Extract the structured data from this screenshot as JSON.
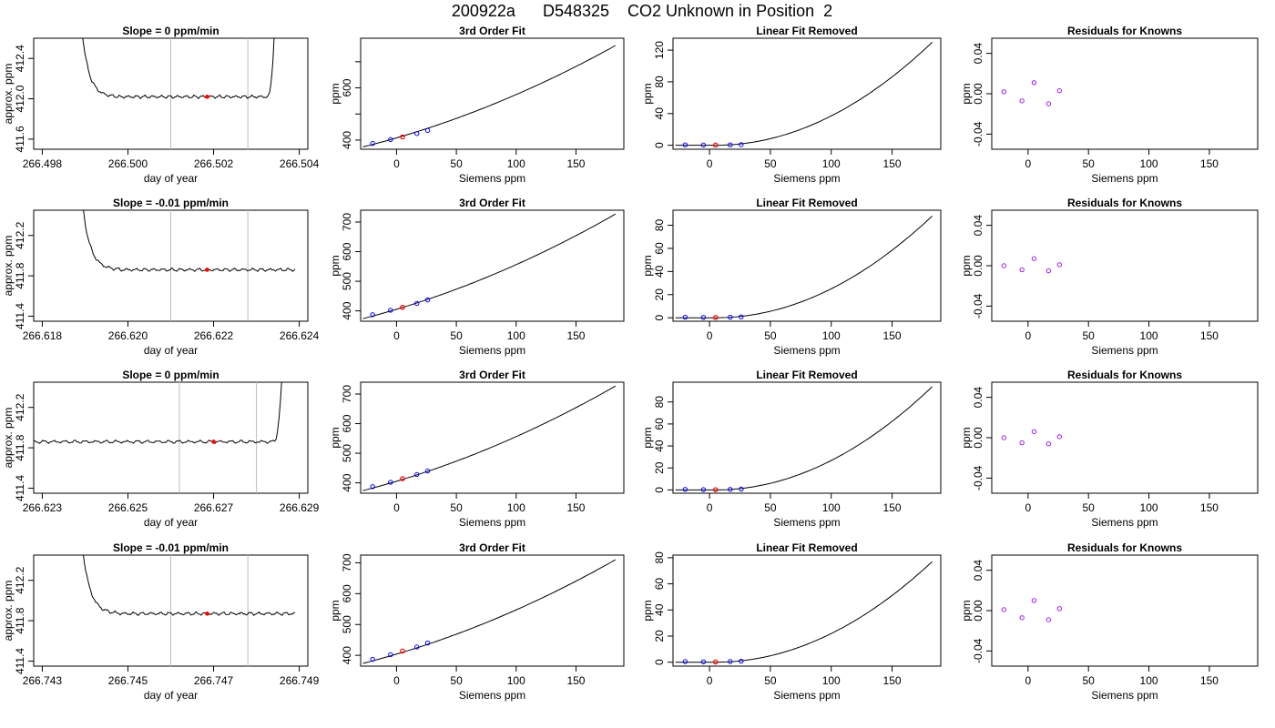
{
  "figure": {
    "main_title": "200922a      D548325    CO2 Unknown in Position  2"
  },
  "colors": {
    "line": "#000000",
    "vline": "#bebebe",
    "point_red": "#ff0000",
    "point_blue": "#0000ff",
    "point_purple": "#a020f0"
  },
  "chart_data": [
    {
      "row": 0,
      "col": 0,
      "type": "line",
      "title": "Slope =  0  ppm/min",
      "xlabel": "day of year",
      "ylabel": "approx. ppm",
      "xlim": [
        266.4978,
        266.5042
      ],
      "ylim": [
        411.5,
        412.6
      ],
      "xticks": [
        266.498,
        266.5,
        266.502,
        266.504
      ],
      "xtick_labels": [
        "266.498",
        "266.500",
        "266.502",
        "266.504"
      ],
      "yticks": [
        411.6,
        412.0,
        412.4
      ],
      "ytick_labels": [
        "411.6",
        "412.0",
        "412.4"
      ],
      "trace": {
        "x_start": 266.4988,
        "x_end": 266.5035,
        "plateau": 412.02,
        "rise_start": true,
        "rise_end": true
      },
      "vlines": [
        266.501,
        266.5028
      ],
      "mark": {
        "x": 266.50185,
        "y": 412.02
      }
    },
    {
      "row": 0,
      "col": 1,
      "type": "line",
      "title": "3rd Order Fit",
      "xlabel": "Siemens ppm",
      "ylabel": "ppm",
      "xlim": [
        -30,
        190
      ],
      "ylim": [
        365,
        790
      ],
      "xticks": [
        0,
        50,
        100,
        150
      ],
      "xtick_labels": [
        "0",
        "50",
        "100",
        "150"
      ],
      "yticks": [
        400,
        600
      ],
      "ytick_labels": [
        "400",
        "600"
      ],
      "yminor": [
        500,
        700
      ],
      "curve": {
        "x0": -28,
        "x1": 183,
        "y0": 374,
        "y1": 762
      },
      "points_blue": [
        [
          -20,
          387
        ],
        [
          -5,
          402
        ],
        [
          17,
          425
        ],
        [
          26,
          437
        ]
      ],
      "point_red": [
        5,
        412
      ]
    },
    {
      "row": 0,
      "col": 2,
      "type": "line",
      "title": "Linear Fit Removed",
      "xlabel": "Siemens ppm",
      "ylabel": "ppm",
      "xlim": [
        -30,
        190
      ],
      "ylim": [
        -5,
        135
      ],
      "xticks": [
        0,
        50,
        100,
        150
      ],
      "xtick_labels": [
        "0",
        "50",
        "100",
        "150"
      ],
      "yticks": [
        0,
        40,
        80,
        120
      ],
      "ytick_labels": [
        "0",
        "40",
        "80",
        "120"
      ],
      "curve": {
        "x0": -28,
        "x1": 183,
        "y1": 130
      },
      "points_blue": [
        [
          -20,
          0.5
        ],
        [
          -5,
          0.3
        ],
        [
          17,
          0.5
        ],
        [
          26,
          0.8
        ]
      ],
      "point_red": [
        5,
        0.2
      ]
    },
    {
      "row": 0,
      "col": 3,
      "type": "scatter",
      "title": "Residuals for Knowns",
      "xlabel": "Siemens ppm",
      "ylabel": "ppm",
      "xlim": [
        -30,
        190
      ],
      "ylim": [
        -0.055,
        0.055
      ],
      "xticks": [
        0,
        50,
        100,
        150
      ],
      "xtick_labels": [
        "0",
        "50",
        "100",
        "150"
      ],
      "yticks": [
        -0.04,
        0.0,
        0.04
      ],
      "ytick_labels": [
        "-0.04",
        "0.00",
        "0.04"
      ],
      "points_purple": [
        [
          -20,
          0.002
        ],
        [
          -5,
          -0.007
        ],
        [
          5,
          0.011
        ],
        [
          17,
          -0.01
        ],
        [
          26,
          0.003
        ]
      ]
    },
    {
      "row": 1,
      "col": 0,
      "type": "line",
      "title": "Slope =  -0.01  ppm/min",
      "xlabel": "day of year",
      "ylabel": "approx. ppm",
      "xlim": [
        266.6178,
        266.6242
      ],
      "ylim": [
        411.35,
        412.45
      ],
      "xticks": [
        266.618,
        266.62,
        266.622,
        266.624
      ],
      "xtick_labels": [
        "266.618",
        "266.620",
        "266.622",
        "266.624"
      ],
      "yticks": [
        411.4,
        411.8,
        412.2
      ],
      "ytick_labels": [
        "411.4",
        "411.8",
        "412.2"
      ],
      "trace": {
        "x_start": 266.6188,
        "x_end": 266.6239,
        "plateau": 411.86,
        "rise_start": true,
        "rise_end": false
      },
      "vlines": [
        266.621,
        266.6228
      ],
      "mark": {
        "x": 266.62185,
        "y": 411.86
      }
    },
    {
      "row": 1,
      "col": 1,
      "type": "line",
      "title": "3rd Order Fit",
      "xlabel": "Siemens ppm",
      "ylabel": "ppm",
      "xlim": [
        -30,
        190
      ],
      "ylim": [
        365,
        740
      ],
      "xticks": [
        0,
        50,
        100,
        150
      ],
      "xtick_labels": [
        "0",
        "50",
        "100",
        "150"
      ],
      "yticks": [
        400,
        500,
        600,
        700
      ],
      "ytick_labels": [
        "400",
        "500",
        "600",
        "700"
      ],
      "curve": {
        "x0": -28,
        "x1": 183,
        "y0": 374,
        "y1": 727
      },
      "points_blue": [
        [
          -20,
          387
        ],
        [
          -5,
          402
        ],
        [
          17,
          425
        ],
        [
          26,
          437
        ]
      ],
      "point_red": [
        5,
        412
      ]
    },
    {
      "row": 1,
      "col": 2,
      "type": "line",
      "title": "Linear Fit Removed",
      "xlabel": "Siemens ppm",
      "ylabel": "ppm",
      "xlim": [
        -30,
        190
      ],
      "ylim": [
        -3,
        93
      ],
      "xticks": [
        0,
        50,
        100,
        150
      ],
      "xtick_labels": [
        "0",
        "50",
        "100",
        "150"
      ],
      "yticks": [
        0,
        20,
        40,
        60,
        80
      ],
      "ytick_labels": [
        "0",
        "20",
        "40",
        "60",
        "80"
      ],
      "curve": {
        "x0": -28,
        "x1": 183,
        "y1": 88
      },
      "points_blue": [
        [
          -20,
          0.5
        ],
        [
          -5,
          0.3
        ],
        [
          17,
          0.5
        ],
        [
          26,
          0.8
        ]
      ],
      "point_red": [
        5,
        0.2
      ]
    },
    {
      "row": 1,
      "col": 3,
      "type": "scatter",
      "title": "Residuals for Knowns",
      "xlabel": "Siemens ppm",
      "ylabel": "ppm",
      "xlim": [
        -30,
        190
      ],
      "ylim": [
        -0.055,
        0.055
      ],
      "xticks": [
        0,
        50,
        100,
        150
      ],
      "xtick_labels": [
        "0",
        "50",
        "100",
        "150"
      ],
      "yticks": [
        -0.04,
        0.0,
        0.04
      ],
      "ytick_labels": [
        "-0.04",
        "0.00",
        "0.04"
      ],
      "points_purple": [
        [
          -20,
          0.0
        ],
        [
          -5,
          -0.004
        ],
        [
          5,
          0.007
        ],
        [
          17,
          -0.005
        ],
        [
          26,
          0.001
        ]
      ]
    },
    {
      "row": 2,
      "col": 0,
      "type": "line",
      "title": "Slope =  0  ppm/min",
      "xlabel": "day of year",
      "ylabel": "approx. ppm",
      "xlim": [
        266.6228,
        266.6292
      ],
      "ylim": [
        411.35,
        412.45
      ],
      "xticks": [
        266.623,
        266.625,
        266.627,
        266.629
      ],
      "xtick_labels": [
        "266.623",
        "266.625",
        "266.627",
        "266.629"
      ],
      "yticks": [
        411.4,
        411.8,
        412.2
      ],
      "ytick_labels": [
        "411.4",
        "411.8",
        "412.2"
      ],
      "trace": {
        "x_start": 266.6228,
        "x_end": 266.6287,
        "plateau": 411.86,
        "rise_start": false,
        "rise_end": true
      },
      "vlines": [
        266.6262,
        266.628
      ],
      "mark": {
        "x": 266.627,
        "y": 411.86
      }
    },
    {
      "row": 2,
      "col": 1,
      "type": "line",
      "title": "3rd Order Fit",
      "xlabel": "Siemens ppm",
      "ylabel": "ppm",
      "xlim": [
        -30,
        190
      ],
      "ylim": [
        365,
        740
      ],
      "xticks": [
        0,
        50,
        100,
        150
      ],
      "xtick_labels": [
        "0",
        "50",
        "100",
        "150"
      ],
      "yticks": [
        400,
        500,
        600,
        700
      ],
      "ytick_labels": [
        "400",
        "500",
        "600",
        "700"
      ],
      "curve": {
        "x0": -28,
        "x1": 183,
        "y0": 374,
        "y1": 727
      },
      "points_blue": [
        [
          -20,
          387
        ],
        [
          -5,
          402
        ],
        [
          17,
          428
        ],
        [
          26,
          440
        ]
      ],
      "point_red": [
        5,
        414
      ]
    },
    {
      "row": 2,
      "col": 2,
      "type": "line",
      "title": "Linear Fit Removed",
      "xlabel": "Siemens ppm",
      "ylabel": "ppm",
      "xlim": [
        -30,
        190
      ],
      "ylim": [
        -3,
        98
      ],
      "xticks": [
        0,
        50,
        100,
        150
      ],
      "xtick_labels": [
        "0",
        "50",
        "100",
        "150"
      ],
      "yticks": [
        0,
        20,
        40,
        60,
        80
      ],
      "ytick_labels": [
        "0",
        "20",
        "40",
        "60",
        "80"
      ],
      "curve": {
        "x0": -28,
        "x1": 183,
        "y1": 94
      },
      "points_blue": [
        [
          -20,
          0.5
        ],
        [
          -5,
          0.3
        ],
        [
          17,
          0.5
        ],
        [
          26,
          0.8
        ]
      ],
      "point_red": [
        5,
        0.2
      ]
    },
    {
      "row": 2,
      "col": 3,
      "type": "scatter",
      "title": "Residuals for Knowns",
      "xlabel": "Siemens ppm",
      "ylabel": "ppm",
      "xlim": [
        -30,
        190
      ],
      "ylim": [
        -0.055,
        0.055
      ],
      "xticks": [
        0,
        50,
        100,
        150
      ],
      "xtick_labels": [
        "0",
        "50",
        "100",
        "150"
      ],
      "yticks": [
        -0.04,
        0.0,
        0.04
      ],
      "ytick_labels": [
        "-0.04",
        "0.00",
        "0.04"
      ],
      "points_purple": [
        [
          -20,
          0.0
        ],
        [
          -5,
          -0.005
        ],
        [
          5,
          0.006
        ],
        [
          17,
          -0.006
        ],
        [
          26,
          0.001
        ]
      ]
    },
    {
      "row": 3,
      "col": 0,
      "type": "line",
      "title": "Slope =  -0.01  ppm/min",
      "xlabel": "day of year",
      "ylabel": "approx. ppm",
      "xlim": [
        266.7428,
        266.7492
      ],
      "ylim": [
        411.35,
        412.45
      ],
      "xticks": [
        266.743,
        266.745,
        266.747,
        266.749
      ],
      "xtick_labels": [
        "266.743",
        "266.745",
        "266.747",
        "266.749"
      ],
      "yticks": [
        411.4,
        411.8,
        412.2
      ],
      "ytick_labels": [
        "411.4",
        "411.8",
        "412.2"
      ],
      "trace": {
        "x_start": 266.7438,
        "x_end": 266.7489,
        "plateau": 411.87,
        "rise_start": true,
        "rise_end": false
      },
      "vlines": [
        266.746,
        266.7478
      ],
      "mark": {
        "x": 266.74685,
        "y": 411.87
      }
    },
    {
      "row": 3,
      "col": 1,
      "type": "line",
      "title": "3rd Order Fit",
      "xlabel": "Siemens ppm",
      "ylabel": "ppm",
      "xlim": [
        -30,
        190
      ],
      "ylim": [
        365,
        725
      ],
      "xticks": [
        0,
        50,
        100,
        150
      ],
      "xtick_labels": [
        "0",
        "50",
        "100",
        "150"
      ],
      "yticks": [
        400,
        500,
        600,
        700
      ],
      "ytick_labels": [
        "400",
        "500",
        "600",
        "700"
      ],
      "curve": {
        "x0": -28,
        "x1": 183,
        "y0": 374,
        "y1": 710
      },
      "points_blue": [
        [
          -20,
          387
        ],
        [
          -5,
          402
        ],
        [
          17,
          427
        ],
        [
          26,
          440
        ]
      ],
      "point_red": [
        5,
        414
      ]
    },
    {
      "row": 3,
      "col": 2,
      "type": "line",
      "title": "Linear Fit Removed",
      "xlabel": "Siemens ppm",
      "ylabel": "ppm",
      "xlim": [
        -30,
        190
      ],
      "ylim": [
        -3,
        82
      ],
      "xticks": [
        0,
        50,
        100,
        150
      ],
      "xtick_labels": [
        "0",
        "50",
        "100",
        "150"
      ],
      "yticks": [
        0,
        20,
        40,
        60,
        80
      ],
      "ytick_labels": [
        "0",
        "20",
        "40",
        "60",
        "80"
      ],
      "curve": {
        "x0": -28,
        "x1": 183,
        "y1": 77
      },
      "points_blue": [
        [
          -20,
          0.5
        ],
        [
          -5,
          0.3
        ],
        [
          17,
          0.5
        ],
        [
          26,
          0.8
        ]
      ],
      "point_red": [
        5,
        0.2
      ]
    },
    {
      "row": 3,
      "col": 3,
      "type": "scatter",
      "title": "Residuals for Knowns",
      "xlabel": "Siemens ppm",
      "ylabel": "ppm",
      "xlim": [
        -30,
        190
      ],
      "ylim": [
        -0.055,
        0.055
      ],
      "xticks": [
        0,
        50,
        100,
        150
      ],
      "xtick_labels": [
        "0",
        "50",
        "100",
        "150"
      ],
      "yticks": [
        -0.04,
        0.0,
        0.04
      ],
      "ytick_labels": [
        "-0.04",
        "0.00",
        "0.04"
      ],
      "points_purple": [
        [
          -20,
          0.001
        ],
        [
          -5,
          -0.007
        ],
        [
          5,
          0.01
        ],
        [
          17,
          -0.009
        ],
        [
          26,
          0.002
        ]
      ]
    }
  ]
}
